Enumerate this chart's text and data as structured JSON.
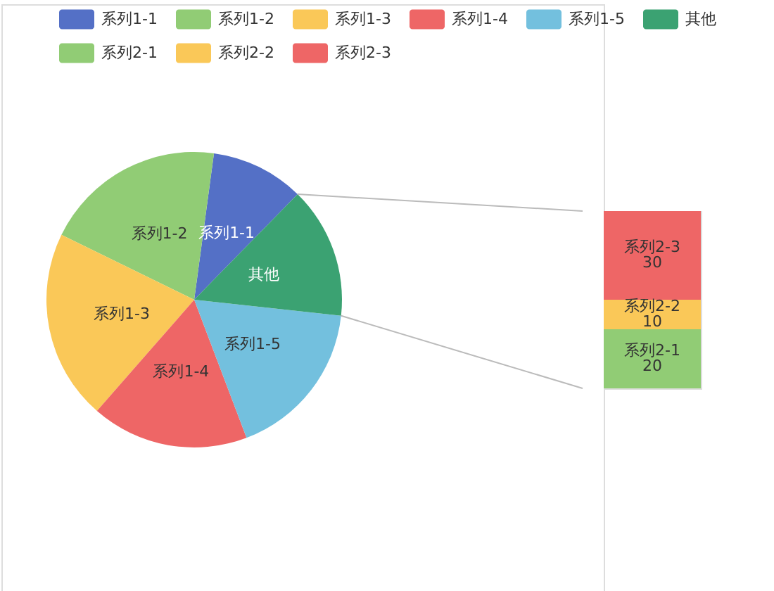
{
  "chart_data": [
    {
      "type": "pie",
      "categories": [
        "系列1-1",
        "系列1-2",
        "系列1-3",
        "系列1-4",
        "系列1-5",
        "其他"
      ],
      "values": [
        10.2,
        19.9,
        20.8,
        17.2,
        17.5,
        14.4
      ],
      "colors": [
        "#5470c6",
        "#91cc75",
        "#fac858",
        "#ee6666",
        "#73c0de",
        "#3ba272"
      ],
      "legend": "top"
    },
    {
      "type": "bar",
      "stacked": true,
      "categories": [
        null
      ],
      "series": [
        {
          "name": "系列2-1",
          "color": "#91cc75",
          "values": [
            20
          ]
        },
        {
          "name": "系列2-2",
          "color": "#fac858",
          "values": [
            10
          ]
        },
        {
          "name": "系列2-3",
          "color": "#ee6666",
          "values": [
            30
          ]
        }
      ],
      "data_labels": true,
      "legend": "top left"
    }
  ]
}
